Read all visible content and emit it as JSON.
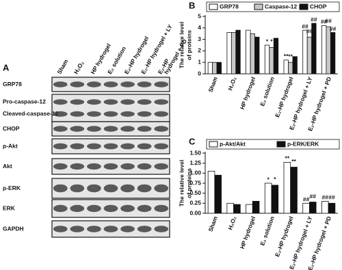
{
  "panels": [
    "A",
    "B",
    "C"
  ],
  "blot": {
    "lanes": [
      [
        "Sham"
      ],
      [
        "H₂O₂"
      ],
      [
        "HP hydrogel"
      ],
      [
        "E₂ solution"
      ],
      [
        "E₂-HP hydrogel"
      ],
      [
        "E₂-HP hydrogel + LY"
      ],
      [
        "E₂-HP",
        "hydrogel + PD"
      ]
    ],
    "rows": [
      [
        "GRP78"
      ],
      [
        "Pro-caspase-12",
        "Cleaved-caspase-12"
      ],
      [
        "CHOP"
      ],
      [
        "p-Akt"
      ],
      [
        "Akt"
      ],
      [
        "p-ERK"
      ],
      [
        "ERK"
      ],
      [
        "GAPDH"
      ]
    ]
  },
  "chart_data": [
    {
      "type": "bar",
      "ylabel": [
        "The relative level",
        "of proteins"
      ],
      "categories": [
        "Sham",
        "H₂O₂",
        "HP hydrogel",
        "E₂ solution",
        "E₂-HP hydrogel",
        "E₂-HP hydrogel + LY",
        "E₂-HP hydrogel + PD"
      ],
      "series": [
        {
          "name": "GRP78",
          "color": "#ffffff",
          "values": [
            1.0,
            3.6,
            3.8,
            2.5,
            1.2,
            3.8,
            4.2
          ],
          "significance": [
            null,
            null,
            null,
            "*",
            "**",
            "##",
            "##"
          ]
        },
        {
          "name": "Caspase-12",
          "color": "#c8c8c8",
          "values": [
            1.0,
            3.6,
            3.5,
            2.3,
            1.0,
            3.2,
            4.1
          ],
          "significance": [
            null,
            null,
            null,
            "*",
            "**",
            "##",
            "##"
          ]
        },
        {
          "name": "CHOP",
          "color": "#111111",
          "values": [
            1.0,
            3.8,
            3.2,
            3.1,
            1.5,
            4.4,
            3.6
          ],
          "significance": [
            null,
            null,
            null,
            null,
            null,
            "##",
            "##"
          ]
        }
      ],
      "ylim": [
        0,
        5
      ],
      "yticks": [
        0,
        1,
        2,
        3,
        4,
        5
      ],
      "legend": "top"
    },
    {
      "type": "bar",
      "ylabel": [
        "The relative level",
        "of proteins"
      ],
      "categories": [
        "Sham",
        "H₂O₂",
        "HP hydrogel",
        "E₂ solution",
        "E₂-HP hydrogel",
        "E₂-HP hydrogel + LY",
        "E₂-HP hydrogel + PD"
      ],
      "series": [
        {
          "name": "p-Akt/Akt",
          "color": "#ffffff",
          "values": [
            1.05,
            0.25,
            0.22,
            0.75,
            1.27,
            0.25,
            0.3
          ],
          "significance": [
            null,
            null,
            null,
            "*",
            "**",
            "##",
            "##"
          ]
        },
        {
          "name": "p-ERK/ERK",
          "color": "#111111",
          "values": [
            0.95,
            0.22,
            0.3,
            0.7,
            1.15,
            0.28,
            0.25
          ],
          "significance": [
            null,
            null,
            null,
            "*",
            "**",
            "##",
            "##"
          ]
        }
      ],
      "ylim": [
        0,
        1.5
      ],
      "yticks": [
        {
          "value": 0,
          "label": "0.00"
        },
        {
          "value": 0.25,
          "label": "0.25"
        },
        {
          "value": 0.5,
          "label": "0.50"
        },
        {
          "value": 0.75,
          "label": "0.75"
        },
        {
          "value": 1,
          "label": "1.00"
        },
        {
          "value": 1.25,
          "label": "1.25"
        },
        {
          "value": 1.5,
          "label": "1.50"
        }
      ],
      "legend": "top"
    }
  ]
}
